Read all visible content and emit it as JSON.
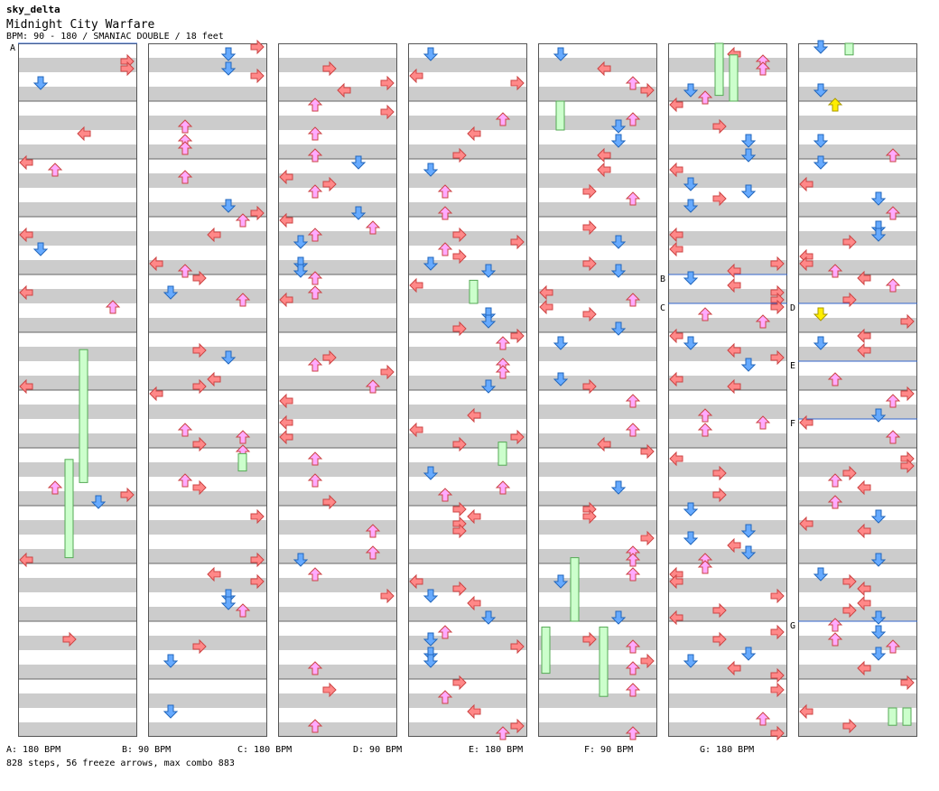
{
  "header": {
    "author": "sky_delta",
    "song_title": "Midnight City Warfare",
    "info": "BPM: 90 - 180 / SMANIAC DOUBLE / 18 feet"
  },
  "colors": {
    "left": "#ff8888",
    "down": "#66aaff",
    "up": "#ffaaff",
    "right": "#ff8888",
    "freeze_fill": "#ccffcc",
    "freeze_border": "#55aa55",
    "shock": "#ffee00",
    "stripe_gray": "#cccccc",
    "bpm_line": "#3366cc"
  },
  "bpm_markers": [
    {
      "label": "A",
      "bpm": "180 BPM",
      "column": 0,
      "row": 0
    },
    {
      "label": "B",
      "bpm": "90 BPM",
      "column": 5,
      "row": 4
    },
    {
      "label": "C",
      "bpm": "180 BPM",
      "column": 5,
      "row": 5
    },
    {
      "label": "D",
      "bpm": "90 BPM",
      "column": 6,
      "row": 5
    },
    {
      "label": "E",
      "bpm": "180 BPM",
      "column": 6,
      "row": 7
    },
    {
      "label": "F",
      "bpm": "90 BPM",
      "column": 6,
      "row": 8
    },
    {
      "label": "G",
      "bpm": "180 BPM",
      "column": 6,
      "row": 13
    }
  ],
  "legend": [
    {
      "label": "A: 180 BPM"
    },
    {
      "label": "B: 90 BPM"
    },
    {
      "label": "C: 180 BPM"
    },
    {
      "label": "D: 90 BPM"
    },
    {
      "label": "E: 180 BPM"
    },
    {
      "label": "F: 90 BPM"
    },
    {
      "label": "G: 180 BPM"
    }
  ],
  "stats": "828 steps, 56 freeze arrows, max combo 883"
}
